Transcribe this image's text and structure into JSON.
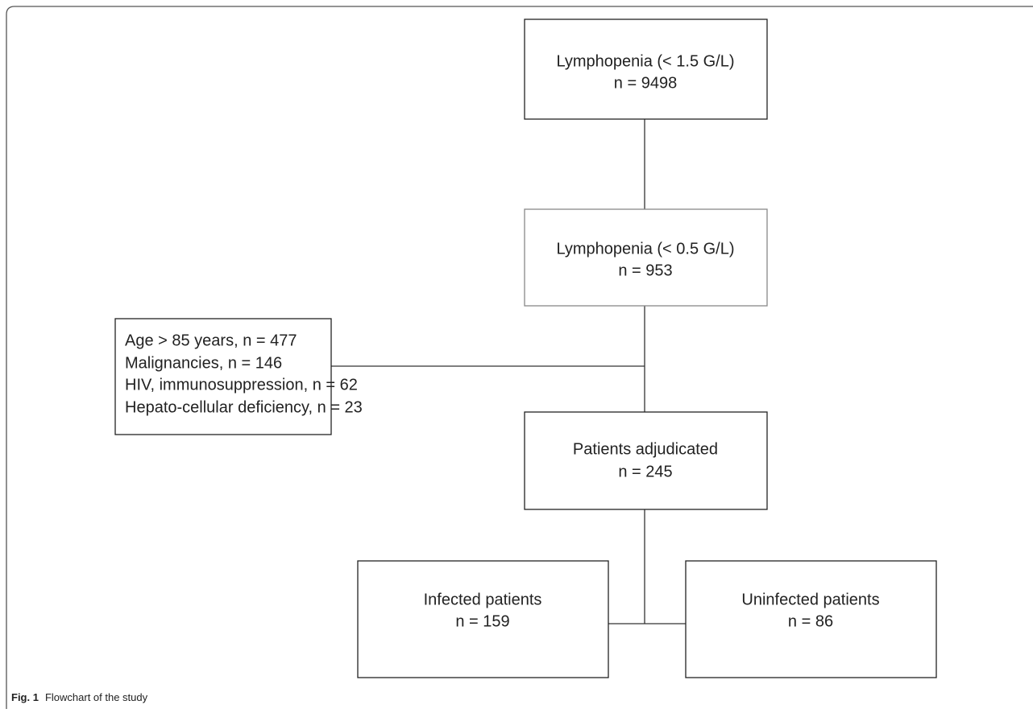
{
  "nodes": [
    {
      "lines": [
        "Lymphopenia (< 1.5 G/L)",
        "n = 9498"
      ]
    },
    {
      "lines": [
        "Lymphopenia (< 0.5 G/L)",
        "n = 953"
      ]
    },
    {
      "lines": [
        "Age > 85 years, n = 477",
        "Malignancies, n = 146",
        "HIV, immunosuppression, n = 62",
        "Hepato-cellular deficiency, n = 23"
      ]
    },
    {
      "lines": [
        "Patients adjudicated",
        "n = 245"
      ]
    },
    {
      "lines": [
        "Infected patients",
        "n = 159"
      ]
    },
    {
      "lines": [
        "Uninfected patients",
        "n = 86"
      ]
    }
  ],
  "caption": {
    "label": "Fig. 1",
    "text": "Flowchart of the study"
  }
}
